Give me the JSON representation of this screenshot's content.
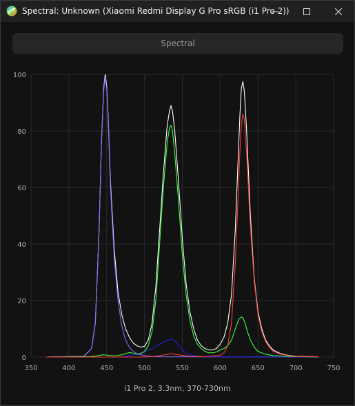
{
  "window": {
    "title": "Spectral: Unknown (Xiaomi Redmi Display G Pro sRGB (i1 Pro 2))",
    "icon": "displaycal-icon",
    "controls": [
      "minimize-icon",
      "maximize-icon",
      "close-icon"
    ]
  },
  "toolbar": {
    "spectral_label": "Spectral"
  },
  "footer": {
    "instrument_text": "i1 Pro 2, 3.3nm, 370-730nm"
  },
  "colors": {
    "white": "#ffffff",
    "red": "#ff3b3b",
    "green": "#3cff3c",
    "blue": "#1f1fd8",
    "violet": "#8a6bff",
    "grid": "#2a2a2a",
    "axis_text": "#b0b0b0"
  },
  "chart_data": {
    "type": "line",
    "xlim": [
      350,
      750
    ],
    "ylim": [
      0,
      100
    ],
    "x_ticks": [
      350,
      400,
      450,
      500,
      550,
      600,
      650,
      700,
      750
    ],
    "y_ticks": [
      0,
      20,
      40,
      60,
      80,
      100
    ],
    "grid": true,
    "series": [
      {
        "key": "white",
        "points": [
          [
            370,
            0
          ],
          [
            420,
            0.3
          ],
          [
            430,
            3
          ],
          [
            435,
            12
          ],
          [
            440,
            45
          ],
          [
            443,
            75
          ],
          [
            446,
            95
          ],
          [
            448,
            100
          ],
          [
            450,
            96
          ],
          [
            452,
            85
          ],
          [
            455,
            62
          ],
          [
            460,
            38
          ],
          [
            465,
            23
          ],
          [
            470,
            15
          ],
          [
            475,
            10
          ],
          [
            480,
            7
          ],
          [
            485,
            5
          ],
          [
            490,
            4
          ],
          [
            495,
            3.5
          ],
          [
            500,
            3.8
          ],
          [
            505,
            6
          ],
          [
            510,
            12
          ],
          [
            515,
            25
          ],
          [
            520,
            45
          ],
          [
            525,
            65
          ],
          [
            530,
            82
          ],
          [
            533,
            87
          ],
          [
            535,
            89
          ],
          [
            537,
            87
          ],
          [
            540,
            80
          ],
          [
            545,
            62
          ],
          [
            550,
            42
          ],
          [
            555,
            26
          ],
          [
            560,
            16
          ],
          [
            565,
            10
          ],
          [
            570,
            6
          ],
          [
            575,
            4
          ],
          [
            580,
            3
          ],
          [
            585,
            2.5
          ],
          [
            590,
            2.5
          ],
          [
            595,
            3
          ],
          [
            600,
            4.5
          ],
          [
            605,
            7
          ],
          [
            610,
            12
          ],
          [
            615,
            22
          ],
          [
            620,
            45
          ],
          [
            623,
            65
          ],
          [
            626,
            85
          ],
          [
            628,
            95
          ],
          [
            630,
            97.5
          ],
          [
            632,
            94
          ],
          [
            635,
            80
          ],
          [
            640,
            50
          ],
          [
            645,
            28
          ],
          [
            650,
            16
          ],
          [
            655,
            10
          ],
          [
            660,
            6
          ],
          [
            665,
            4
          ],
          [
            670,
            2.5
          ],
          [
            680,
            1.2
          ],
          [
            690,
            0.6
          ],
          [
            700,
            0.3
          ],
          [
            730,
            0.1
          ]
        ]
      },
      {
        "key": "violet",
        "points": [
          [
            370,
            0
          ],
          [
            420,
            0.3
          ],
          [
            430,
            3
          ],
          [
            435,
            12
          ],
          [
            440,
            45
          ],
          [
            443,
            75
          ],
          [
            446,
            94
          ],
          [
            448,
            99
          ],
          [
            450,
            95
          ],
          [
            452,
            84
          ],
          [
            455,
            60
          ],
          [
            460,
            35
          ],
          [
            465,
            20
          ],
          [
            470,
            11
          ],
          [
            475,
            6
          ],
          [
            480,
            3.5
          ],
          [
            485,
            2
          ],
          [
            490,
            1.2
          ],
          [
            495,
            0.8
          ],
          [
            500,
            0.5
          ],
          [
            510,
            0.2
          ],
          [
            520,
            0.1
          ],
          [
            730,
            0
          ]
        ]
      },
      {
        "key": "blue",
        "points": [
          [
            370,
            0
          ],
          [
            470,
            0
          ],
          [
            480,
            0.5
          ],
          [
            490,
            1
          ],
          [
            500,
            2
          ],
          [
            510,
            3
          ],
          [
            520,
            4.5
          ],
          [
            530,
            6
          ],
          [
            535,
            6.3
          ],
          [
            540,
            5.8
          ],
          [
            545,
            4
          ],
          [
            550,
            2.5
          ],
          [
            555,
            1.5
          ],
          [
            560,
            0.8
          ],
          [
            570,
            0.3
          ],
          [
            580,
            0.1
          ],
          [
            730,
            0
          ]
        ]
      },
      {
        "key": "green",
        "points": [
          [
            370,
            0
          ],
          [
            430,
            0.2
          ],
          [
            440,
            0.5
          ],
          [
            445,
            0.8
          ],
          [
            450,
            0.7
          ],
          [
            455,
            0.5
          ],
          [
            460,
            0.4
          ],
          [
            470,
            0.8
          ],
          [
            475,
            1.2
          ],
          [
            480,
            1.6
          ],
          [
            485,
            1.4
          ],
          [
            490,
            1
          ],
          [
            495,
            1.2
          ],
          [
            500,
            2
          ],
          [
            505,
            4
          ],
          [
            510,
            9
          ],
          [
            515,
            20
          ],
          [
            520,
            40
          ],
          [
            525,
            60
          ],
          [
            530,
            76
          ],
          [
            533,
            81
          ],
          [
            535,
            82
          ],
          [
            537,
            80
          ],
          [
            540,
            72
          ],
          [
            545,
            55
          ],
          [
            550,
            36
          ],
          [
            555,
            22
          ],
          [
            560,
            13
          ],
          [
            565,
            7.5
          ],
          [
            570,
            4.5
          ],
          [
            575,
            3
          ],
          [
            580,
            2
          ],
          [
            585,
            1.5
          ],
          [
            590,
            1.5
          ],
          [
            595,
            1.8
          ],
          [
            600,
            2.5
          ],
          [
            605,
            3
          ],
          [
            610,
            4
          ],
          [
            615,
            6
          ],
          [
            620,
            10
          ],
          [
            625,
            13.5
          ],
          [
            628,
            14.2
          ],
          [
            630,
            14
          ],
          [
            633,
            12
          ],
          [
            636,
            9
          ],
          [
            640,
            6
          ],
          [
            645,
            3.5
          ],
          [
            650,
            2
          ],
          [
            660,
            1
          ],
          [
            670,
            0.5
          ],
          [
            690,
            0.2
          ],
          [
            730,
            0
          ]
        ]
      },
      {
        "key": "red",
        "points": [
          [
            370,
            0
          ],
          [
            500,
            0
          ],
          [
            510,
            0.2
          ],
          [
            520,
            0.5
          ],
          [
            530,
            1
          ],
          [
            535,
            1.2
          ],
          [
            540,
            1
          ],
          [
            550,
            0.6
          ],
          [
            560,
            0.3
          ],
          [
            580,
            0.2
          ],
          [
            600,
            0.6
          ],
          [
            605,
            1.5
          ],
          [
            610,
            4
          ],
          [
            615,
            12
          ],
          [
            620,
            33
          ],
          [
            623,
            52
          ],
          [
            626,
            72
          ],
          [
            628,
            82
          ],
          [
            630,
            86
          ],
          [
            632,
            84
          ],
          [
            635,
            72
          ],
          [
            640,
            46
          ],
          [
            645,
            27
          ],
          [
            650,
            15
          ],
          [
            655,
            9
          ],
          [
            660,
            5.5
          ],
          [
            665,
            3.5
          ],
          [
            670,
            2
          ],
          [
            680,
            1
          ],
          [
            690,
            0.5
          ],
          [
            700,
            0.2
          ],
          [
            730,
            0.1
          ]
        ]
      }
    ]
  }
}
